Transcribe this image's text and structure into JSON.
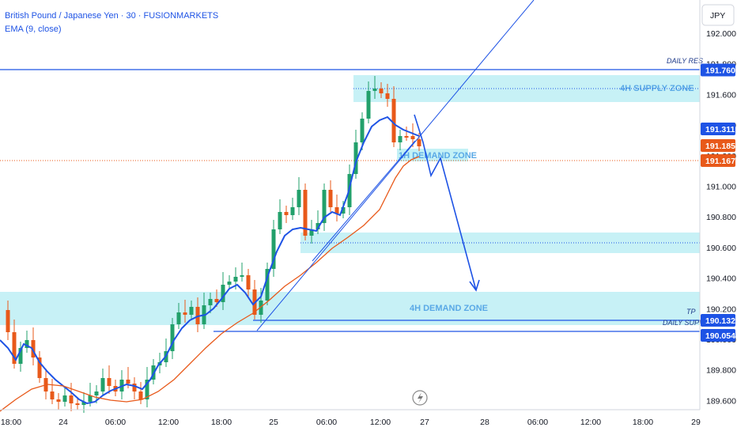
{
  "header": {
    "title": "British Pound / Japanese Yen · 30 · FUSIONMARKETS",
    "indicator": "EMA (9, close)"
  },
  "currency": "JPY",
  "chart_data": {
    "type": "candlestick",
    "ylim": [
      189.55,
      192.1
    ],
    "y_ticks": [
      "192.000",
      "191.800",
      "191.600",
      "191.400",
      "191.200",
      "191.000",
      "190.800",
      "190.600",
      "190.400",
      "190.200",
      "190.000",
      "189.800",
      "189.600"
    ],
    "x_ticks": [
      "18:00",
      "24",
      "06:00",
      "12:00",
      "18:00",
      "25",
      "06:00",
      "12:00",
      "27",
      "28",
      "06:00",
      "12:00",
      "18:00",
      "29"
    ],
    "price_tags": [
      {
        "value": 191.76,
        "label": "191.760",
        "color": "#1e53e5"
      },
      {
        "value": 191.311,
        "label": "191.311",
        "color": "#1e53e5"
      },
      {
        "value": 191.185,
        "label": "191.185",
        "color": "#e8591a"
      },
      {
        "value": 191.167,
        "label": "191.167",
        "color": "#e8591a"
      },
      {
        "value": 190.132,
        "label": "190.132",
        "color": "#1e53e5"
      },
      {
        "value": 190.054,
        "label": "190.054",
        "color": "#1e53e5"
      }
    ],
    "zones": [
      {
        "label": "4H SUPPLY ZONE",
        "top": 191.7,
        "bottom": 191.52
      },
      {
        "label": "1H DEMAND ZONE",
        "top": 191.16,
        "bottom": 191.12
      },
      {
        "label": "",
        "top": 190.69,
        "bottom": 190.58
      },
      {
        "label": "4H DEMAND ZONE",
        "top": 190.3,
        "bottom": 190.09
      }
    ],
    "levels": [
      {
        "label": "DAILY RES",
        "value": 191.76
      },
      {
        "label": "TP",
        "value": 190.132
      },
      {
        "label": "DAILY SUPP",
        "value": 190.054
      }
    ],
    "current_price": 191.167
  }
}
